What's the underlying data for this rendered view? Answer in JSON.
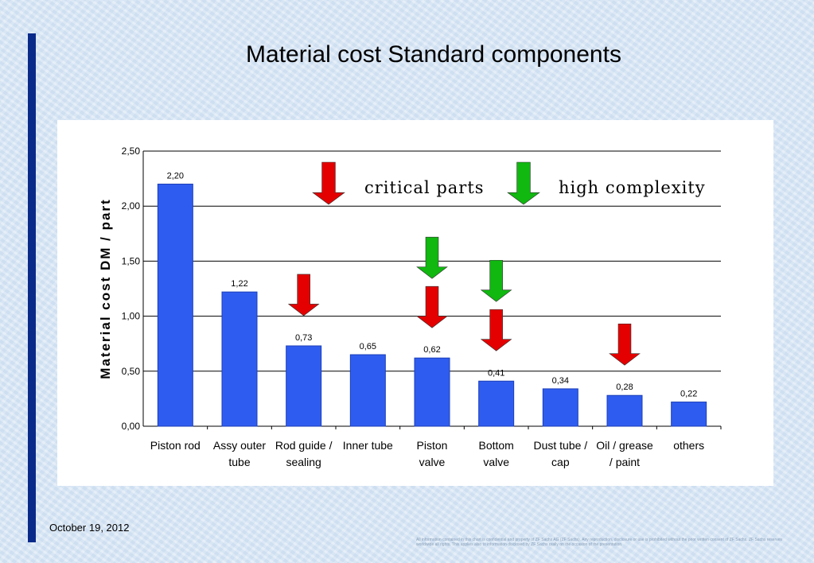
{
  "slide": {
    "title": "Material cost Standard components",
    "date": "October 19, 2012",
    "disclaimer": "All information contained in this chart is confidential and property of ZF Sachs AG (ZF Sachs). Any reproduction, disclosure or use is prohibited without the prior written consent of ZF Sachs. ZF Sachs reserves worldwide all rights. This applies also to information disclosed by ZF Sachs orally on the occasion of the presentation."
  },
  "chart_data": {
    "type": "bar",
    "title": "",
    "xlabel": "",
    "ylabel": "Material cost  DM / part",
    "ylim": [
      0,
      2.5
    ],
    "yticks": [
      "0,00",
      "0,50",
      "1,00",
      "1,50",
      "2,00",
      "2,50"
    ],
    "ytick_values": [
      0,
      0.5,
      1.0,
      1.5,
      2.0,
      2.5
    ],
    "grid": true,
    "categories": [
      [
        "Piston rod"
      ],
      [
        "Assy outer",
        "tube"
      ],
      [
        "Rod guide /",
        "sealing"
      ],
      [
        "Inner tube"
      ],
      [
        "Piston",
        "valve"
      ],
      [
        "Bottom",
        "valve"
      ],
      [
        "Dust tube /",
        "cap"
      ],
      [
        "Oil / grease",
        "/ paint"
      ],
      [
        "others"
      ]
    ],
    "values": [
      2.2,
      1.22,
      0.73,
      0.65,
      0.62,
      0.41,
      0.34,
      0.28,
      0.22
    ],
    "value_labels": [
      "2,20",
      "1,22",
      "0,73",
      "0,65",
      "0,62",
      "0,41",
      "0,34",
      "0,28",
      "0,22"
    ],
    "bar_color": "#2f5cf0",
    "legend": {
      "critical_label": "critical parts",
      "critical_color": "#e40000",
      "complexity_label": "high complexity",
      "complexity_color": "#10b810"
    },
    "markers": [
      {
        "category_index": 2,
        "kind": "critical"
      },
      {
        "category_index": 4,
        "kind": "complexity"
      },
      {
        "category_index": 4,
        "kind": "critical"
      },
      {
        "category_index": 5,
        "kind": "complexity"
      },
      {
        "category_index": 5,
        "kind": "critical"
      },
      {
        "category_index": 7,
        "kind": "critical"
      }
    ]
  }
}
